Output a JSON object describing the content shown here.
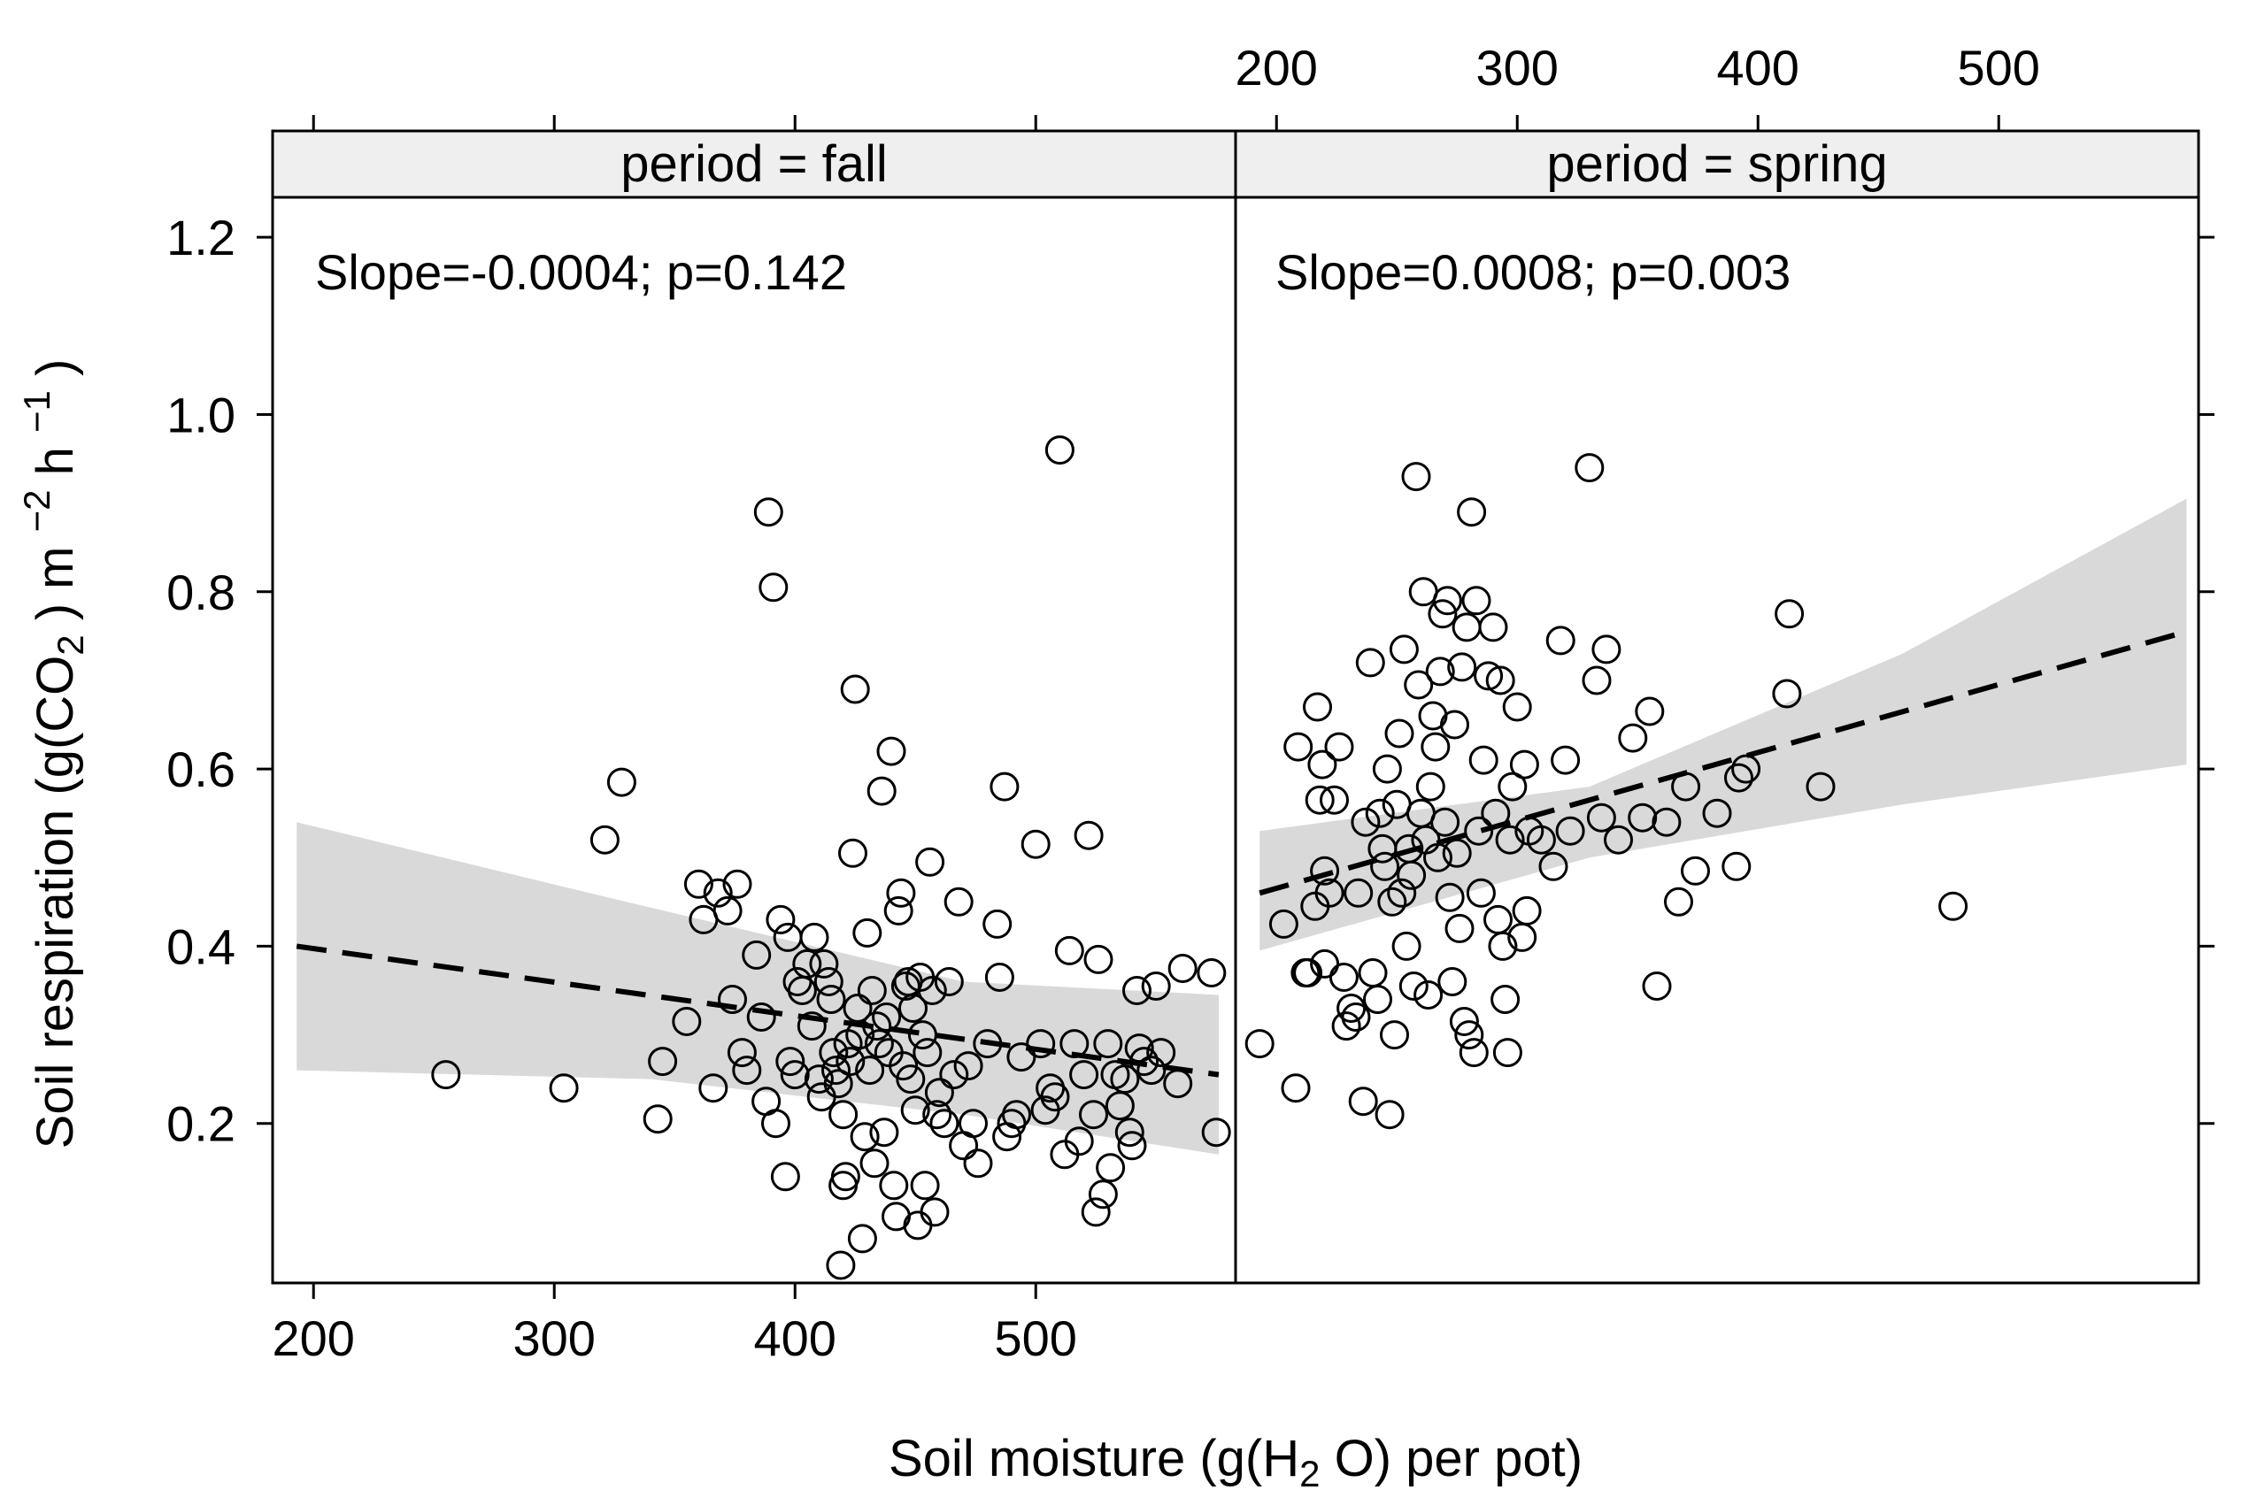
{
  "chart_data": {
    "type": "scatter",
    "xlabel": {
      "prefix": "Soil moisture (g(H",
      "sub": "2",
      "suffix": " O) per pot)"
    },
    "ylabel": {
      "prefix": "Soil respiration (g(CO",
      "sub": "2",
      "mid1": " ) m ",
      "sup1": "−2",
      "mid2": " h ",
      "sup2": "−1",
      "suffix": " )"
    },
    "xlim": [
      183,
      583
    ],
    "ylim": [
      0.02,
      1.32
    ],
    "xticks": [
      200,
      300,
      400,
      500
    ],
    "yticks": [
      0.2,
      0.4,
      0.6,
      0.8,
      1.0,
      1.2
    ],
    "ytick_labels": [
      "0.2",
      "0.4",
      "0.6",
      "0.8",
      "1.0",
      "1.2"
    ],
    "colors": {
      "points": "#000000",
      "band": "#d9d9d9",
      "strip": "#efefef",
      "frame": "#000000"
    },
    "panels": [
      {
        "label": "period = fall",
        "annotation": "Slope=-0.0004; p=0.142",
        "fit": {
          "x0": 193,
          "y0": 0.4,
          "x1": 576,
          "y1": 0.255
        },
        "band": {
          "upper": [
            [
              193,
              0.54
            ],
            [
              330,
              0.45
            ],
            [
              470,
              0.36
            ],
            [
              576,
              0.345
            ]
          ],
          "lower": [
            [
              193,
              0.26
            ],
            [
              340,
              0.25
            ],
            [
              470,
              0.21
            ],
            [
              576,
              0.165
            ]
          ]
        },
        "points": [
          [
            255,
            0.255
          ],
          [
            304,
            0.24
          ],
          [
            321,
            0.52
          ],
          [
            328,
            0.585
          ],
          [
            343,
            0.205
          ],
          [
            345,
            0.27
          ],
          [
            355,
            0.315
          ],
          [
            360,
            0.47
          ],
          [
            362,
            0.43
          ],
          [
            366,
            0.24
          ],
          [
            368,
            0.46
          ],
          [
            372,
            0.44
          ],
          [
            374,
            0.34
          ],
          [
            376,
            0.47
          ],
          [
            378,
            0.28
          ],
          [
            380,
            0.26
          ],
          [
            384,
            0.39
          ],
          [
            386,
            0.32
          ],
          [
            388,
            0.225
          ],
          [
            389,
            0.89
          ],
          [
            391,
            0.805
          ],
          [
            392,
            0.2
          ],
          [
            394,
            0.43
          ],
          [
            396,
            0.14
          ],
          [
            397,
            0.41
          ],
          [
            398,
            0.27
          ],
          [
            400,
            0.255
          ],
          [
            401,
            0.36
          ],
          [
            403,
            0.35
          ],
          [
            405,
            0.38
          ],
          [
            407,
            0.31
          ],
          [
            408,
            0.41
          ],
          [
            410,
            0.25
          ],
          [
            411,
            0.23
          ],
          [
            412,
            0.38
          ],
          [
            414,
            0.36
          ],
          [
            415,
            0.34
          ],
          [
            416,
            0.28
          ],
          [
            417,
            0.26
          ],
          [
            418,
            0.245
          ],
          [
            419,
            0.04
          ],
          [
            420,
            0.21
          ],
          [
            420,
            0.13
          ],
          [
            421,
            0.14
          ],
          [
            422,
            0.29
          ],
          [
            423,
            0.27
          ],
          [
            424,
            0.505
          ],
          [
            425,
            0.69
          ],
          [
            426,
            0.33
          ],
          [
            427,
            0.3
          ],
          [
            428,
            0.07
          ],
          [
            429,
            0.185
          ],
          [
            430,
            0.415
          ],
          [
            431,
            0.26
          ],
          [
            432,
            0.35
          ],
          [
            433,
            0.155
          ],
          [
            434,
            0.31
          ],
          [
            435,
            0.29
          ],
          [
            436,
            0.575
          ],
          [
            437,
            0.19
          ],
          [
            438,
            0.32
          ],
          [
            439,
            0.28
          ],
          [
            440,
            0.62
          ],
          [
            441,
            0.13
          ],
          [
            442,
            0.095
          ],
          [
            443,
            0.44
          ],
          [
            444,
            0.46
          ],
          [
            445,
            0.265
          ],
          [
            446,
            0.355
          ],
          [
            447,
            0.36
          ],
          [
            448,
            0.25
          ],
          [
            449,
            0.33
          ],
          [
            450,
            0.215
          ],
          [
            451,
            0.085
          ],
          [
            452,
            0.365
          ],
          [
            453,
            0.3
          ],
          [
            454,
            0.13
          ],
          [
            455,
            0.28
          ],
          [
            456,
            0.495
          ],
          [
            457,
            0.35
          ],
          [
            458,
            0.1
          ],
          [
            459,
            0.21
          ],
          [
            460,
            0.235
          ],
          [
            462,
            0.2
          ],
          [
            464,
            0.36
          ],
          [
            466,
            0.255
          ],
          [
            468,
            0.45
          ],
          [
            470,
            0.175
          ],
          [
            472,
            0.265
          ],
          [
            474,
            0.2
          ],
          [
            476,
            0.155
          ],
          [
            480,
            0.29
          ],
          [
            484,
            0.425
          ],
          [
            485,
            0.365
          ],
          [
            487,
            0.58
          ],
          [
            488,
            0.185
          ],
          [
            490,
            0.2
          ],
          [
            492,
            0.21
          ],
          [
            494,
            0.275
          ],
          [
            500,
            0.515
          ],
          [
            502,
            0.29
          ],
          [
            504,
            0.215
          ],
          [
            506,
            0.24
          ],
          [
            508,
            0.23
          ],
          [
            510,
            0.96
          ],
          [
            512,
            0.165
          ],
          [
            514,
            0.395
          ],
          [
            516,
            0.29
          ],
          [
            518,
            0.18
          ],
          [
            520,
            0.255
          ],
          [
            522,
            0.525
          ],
          [
            524,
            0.21
          ],
          [
            525,
            0.1
          ],
          [
            526,
            0.385
          ],
          [
            528,
            0.12
          ],
          [
            530,
            0.29
          ],
          [
            531,
            0.15
          ],
          [
            533,
            0.255
          ],
          [
            535,
            0.22
          ],
          [
            537,
            0.25
          ],
          [
            539,
            0.19
          ],
          [
            540,
            0.175
          ],
          [
            542,
            0.35
          ],
          [
            543,
            0.285
          ],
          [
            545,
            0.27
          ],
          [
            548,
            0.26
          ],
          [
            550,
            0.355
          ],
          [
            552,
            0.28
          ],
          [
            559,
            0.245
          ],
          [
            561,
            0.375
          ],
          [
            573,
            0.37
          ],
          [
            575,
            0.19
          ]
        ]
      },
      {
        "label": "period = spring",
        "annotation": "Slope=0.0008; p=0.003",
        "fit": {
          "x0": 193,
          "y0": 0.46,
          "x1": 578,
          "y1": 0.755
        },
        "band": {
          "upper": [
            [
              193,
              0.53
            ],
            [
              330,
              0.58
            ],
            [
              460,
              0.73
            ],
            [
              578,
              0.905
            ]
          ],
          "lower": [
            [
              193,
              0.395
            ],
            [
              330,
              0.5
            ],
            [
              460,
              0.56
            ],
            [
              578,
              0.605
            ]
          ]
        },
        "points": [
          [
            193,
            0.29
          ],
          [
            203,
            0.425
          ],
          [
            208,
            0.24
          ],
          [
            209,
            0.625
          ],
          [
            212,
            0.37
          ],
          [
            213,
            0.37
          ],
          [
            216,
            0.445
          ],
          [
            217,
            0.67
          ],
          [
            218,
            0.565
          ],
          [
            219,
            0.605
          ],
          [
            220,
            0.38
          ],
          [
            220,
            0.485
          ],
          [
            222,
            0.46
          ],
          [
            224,
            0.565
          ],
          [
            226,
            0.625
          ],
          [
            228,
            0.365
          ],
          [
            229,
            0.31
          ],
          [
            231,
            0.33
          ],
          [
            233,
            0.32
          ],
          [
            234,
            0.46
          ],
          [
            236,
            0.225
          ],
          [
            237,
            0.54
          ],
          [
            239,
            0.72
          ],
          [
            240,
            0.37
          ],
          [
            242,
            0.34
          ],
          [
            243,
            0.55
          ],
          [
            244,
            0.51
          ],
          [
            245,
            0.49
          ],
          [
            246,
            0.6
          ],
          [
            247,
            0.21
          ],
          [
            248,
            0.45
          ],
          [
            249,
            0.3
          ],
          [
            250,
            0.56
          ],
          [
            251,
            0.64
          ],
          [
            252,
            0.46
          ],
          [
            253,
            0.735
          ],
          [
            254,
            0.4
          ],
          [
            255,
            0.51
          ],
          [
            256,
            0.48
          ],
          [
            257,
            0.355
          ],
          [
            258,
            0.93
          ],
          [
            259,
            0.695
          ],
          [
            260,
            0.55
          ],
          [
            261,
            0.8
          ],
          [
            262,
            0.52
          ],
          [
            263,
            0.345
          ],
          [
            264,
            0.58
          ],
          [
            265,
            0.66
          ],
          [
            266,
            0.625
          ],
          [
            267,
            0.5
          ],
          [
            268,
            0.71
          ],
          [
            269,
            0.775
          ],
          [
            270,
            0.54
          ],
          [
            271,
            0.79
          ],
          [
            272,
            0.455
          ],
          [
            273,
            0.36
          ],
          [
            274,
            0.65
          ],
          [
            275,
            0.505
          ],
          [
            276,
            0.42
          ],
          [
            277,
            0.715
          ],
          [
            278,
            0.315
          ],
          [
            279,
            0.76
          ],
          [
            280,
            0.3
          ],
          [
            281,
            0.89
          ],
          [
            282,
            0.28
          ],
          [
            283,
            0.79
          ],
          [
            284,
            0.53
          ],
          [
            285,
            0.46
          ],
          [
            286,
            0.61
          ],
          [
            288,
            0.705
          ],
          [
            290,
            0.76
          ],
          [
            291,
            0.55
          ],
          [
            292,
            0.43
          ],
          [
            293,
            0.7
          ],
          [
            294,
            0.4
          ],
          [
            295,
            0.34
          ],
          [
            296,
            0.28
          ],
          [
            297,
            0.52
          ],
          [
            298,
            0.58
          ],
          [
            300,
            0.67
          ],
          [
            302,
            0.41
          ],
          [
            303,
            0.605
          ],
          [
            304,
            0.44
          ],
          [
            305,
            0.53
          ],
          [
            310,
            0.52
          ],
          [
            315,
            0.49
          ],
          [
            318,
            0.745
          ],
          [
            320,
            0.61
          ],
          [
            322,
            0.53
          ],
          [
            330,
            0.94
          ],
          [
            333,
            0.7
          ],
          [
            335,
            0.545
          ],
          [
            337,
            0.735
          ],
          [
            342,
            0.52
          ],
          [
            348,
            0.635
          ],
          [
            352,
            0.545
          ],
          [
            355,
            0.665
          ],
          [
            358,
            0.355
          ],
          [
            362,
            0.54
          ],
          [
            367,
            0.45
          ],
          [
            370,
            0.58
          ],
          [
            374,
            0.485
          ],
          [
            383,
            0.55
          ],
          [
            391,
            0.49
          ],
          [
            392,
            0.59
          ],
          [
            395,
            0.6
          ],
          [
            412,
            0.685
          ],
          [
            413,
            0.775
          ],
          [
            426,
            0.58
          ],
          [
            481,
            0.445
          ]
        ]
      }
    ]
  }
}
